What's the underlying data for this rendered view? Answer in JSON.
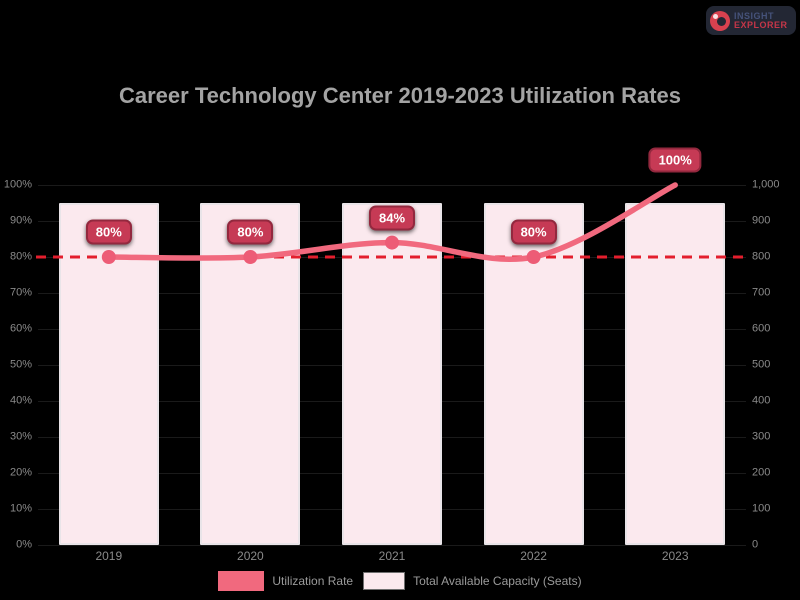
{
  "logo": {
    "line1": "INSIGHT",
    "line2": "EXPLORER",
    "bg": "#232734",
    "line1_color": "#46527a",
    "line2_color": "#c53648",
    "icon_color": "#d8414f",
    "icon_inner_color": "#232734"
  },
  "chart_data": {
    "type": "combo",
    "title": "Career Technology Center 2019-2023 Utilization Rates",
    "categories": [
      "2019",
      "2020",
      "2021",
      "2022",
      "2023"
    ],
    "series": [
      {
        "name": "Utilization Rate",
        "type": "line",
        "axis": "left",
        "values": [
          80,
          80,
          84,
          80,
          100
        ],
        "point_labels": [
          "80%",
          "80%",
          "84%",
          "80%",
          "100%"
        ]
      },
      {
        "name": "Total Available Capacity (Seats)",
        "type": "bar",
        "axis": "right",
        "values": [
          950,
          950,
          950,
          950,
          950
        ]
      }
    ],
    "left_axis": {
      "min": 0,
      "max": 100,
      "ticks": [
        "100%",
        "90%",
        "80%",
        "70%",
        "60%",
        "50%",
        "40%",
        "30%",
        "20%",
        "10%",
        "0%"
      ]
    },
    "right_axis": {
      "min": 0,
      "max": 1000,
      "ticks": [
        "1,000",
        "900",
        "800",
        "700",
        "600",
        "500",
        "400",
        "300",
        "200",
        "100",
        "0"
      ]
    },
    "reference_line": {
      "value": 80,
      "axis": "left",
      "style": "dashed"
    },
    "legend_position": "bottom",
    "grid": true
  },
  "colors": {
    "background": "#000000",
    "title_text": "#a3a3a3",
    "axis_text": "#8a8a8a",
    "legend_text": "#9a9a9a",
    "gridline": "#1a1a1a",
    "line": "#f1697e",
    "marker": "#ed5c76",
    "bar_fill": "#fbe9ee",
    "bar_border": "#e9e4e8",
    "badge_bg": "#c63a55",
    "badge_border": "#93283e",
    "badge_text": "#ffffff",
    "reference_line": "#e31e2d",
    "legend_swatch_border": "#6f6f6f"
  }
}
